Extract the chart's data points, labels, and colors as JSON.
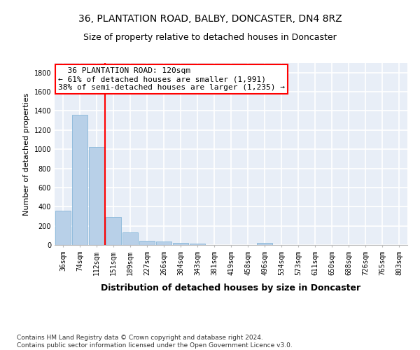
{
  "title": "36, PLANTATION ROAD, BALBY, DONCASTER, DN4 8RZ",
  "subtitle": "Size of property relative to detached houses in Doncaster",
  "xlabel": "Distribution of detached houses by size in Doncaster",
  "ylabel": "Number of detached properties",
  "categories": [
    "36sqm",
    "74sqm",
    "112sqm",
    "151sqm",
    "189sqm",
    "227sqm",
    "266sqm",
    "304sqm",
    "343sqm",
    "381sqm",
    "419sqm",
    "458sqm",
    "496sqm",
    "534sqm",
    "573sqm",
    "611sqm",
    "650sqm",
    "688sqm",
    "726sqm",
    "765sqm",
    "803sqm"
  ],
  "values": [
    355,
    1360,
    1020,
    290,
    130,
    45,
    35,
    22,
    18,
    0,
    0,
    0,
    20,
    0,
    0,
    0,
    0,
    0,
    0,
    0,
    0
  ],
  "bar_color": "#b8d0e8",
  "bar_edge_color": "#7aafd4",
  "vline_color": "red",
  "vline_x_index": 2,
  "annotation_text": "  36 PLANTATION ROAD: 120sqm\n← 61% of detached houses are smaller (1,991)\n38% of semi-detached houses are larger (1,235) →",
  "annotation_box_color": "white",
  "annotation_box_edge_color": "red",
  "ylim": [
    0,
    1900
  ],
  "yticks": [
    0,
    200,
    400,
    600,
    800,
    1000,
    1200,
    1400,
    1600,
    1800
  ],
  "bg_color": "#e8eef7",
  "grid_color": "white",
  "footnote": "Contains HM Land Registry data © Crown copyright and database right 2024.\nContains public sector information licensed under the Open Government Licence v3.0.",
  "title_fontsize": 10,
  "subtitle_fontsize": 9,
  "xlabel_fontsize": 9,
  "ylabel_fontsize": 8,
  "tick_fontsize": 7,
  "annotation_fontsize": 8,
  "footnote_fontsize": 6.5
}
